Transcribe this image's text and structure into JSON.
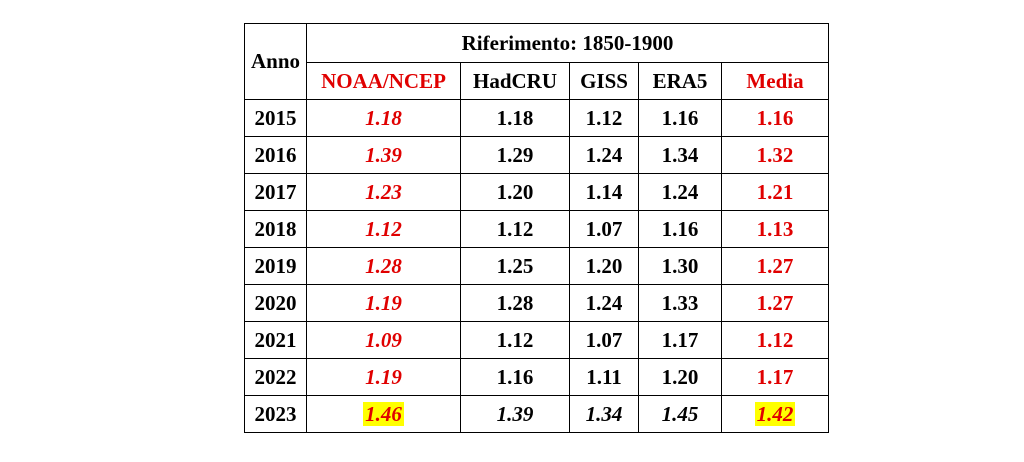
{
  "table": {
    "year_header": "Anno",
    "reference_header": "Riferimento: 1850-1900",
    "columns": [
      "NOAA/NCEP",
      "HadCRU",
      "GISS",
      "ERA5",
      "Media"
    ],
    "rows": [
      {
        "year": "2015",
        "noaa": "1.18",
        "hadcru": "1.18",
        "giss": "1.12",
        "era5": "1.16",
        "media": "1.16"
      },
      {
        "year": "2016",
        "noaa": "1.39",
        "hadcru": "1.29",
        "giss": "1.24",
        "era5": "1.34",
        "media": "1.32"
      },
      {
        "year": "2017",
        "noaa": "1.23",
        "hadcru": "1.20",
        "giss": "1.14",
        "era5": "1.24",
        "media": "1.21"
      },
      {
        "year": "2018",
        "noaa": "1.12",
        "hadcru": "1.12",
        "giss": "1.07",
        "era5": "1.16",
        "media": "1.13"
      },
      {
        "year": "2019",
        "noaa": "1.28",
        "hadcru": "1.25",
        "giss": "1.20",
        "era5": "1.30",
        "media": "1.27"
      },
      {
        "year": "2020",
        "noaa": "1.19",
        "hadcru": "1.28",
        "giss": "1.24",
        "era5": "1.33",
        "media": "1.27"
      },
      {
        "year": "2021",
        "noaa": "1.09",
        "hadcru": "1.12",
        "giss": "1.07",
        "era5": "1.17",
        "media": "1.12"
      },
      {
        "year": "2022",
        "noaa": "1.19",
        "hadcru": "1.16",
        "giss": "1.11",
        "era5": "1.20",
        "media": "1.17"
      },
      {
        "year": "2023",
        "noaa": "1.46",
        "hadcru": "1.39",
        "giss": "1.34",
        "era5": "1.45",
        "media": "1.42"
      }
    ]
  },
  "colors": {
    "accent_red": "#e00000",
    "highlight_yellow": "#ffff00",
    "text_black": "#000000"
  }
}
